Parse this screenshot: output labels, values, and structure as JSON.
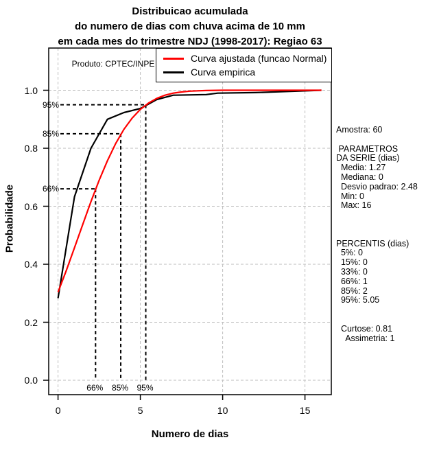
{
  "title": {
    "line1": "Distribuicao acumulada",
    "line2": "do numero de dias com chuva acima de 10 mm",
    "line3": "em cada mes do trimestre NDJ (1998-2017): Regiao 63"
  },
  "watermark": "Produto: CPTEC/INPE",
  "legend": {
    "items": [
      {
        "label": "Curva ajustada (funcao Normal)",
        "color": "#ff0000"
      },
      {
        "label": "Curva empirica",
        "color": "#000000"
      }
    ]
  },
  "axes": {
    "x_label": "Numero de dias",
    "y_label": "Probabilidade",
    "x_tick_labels": [
      "0",
      "5",
      "10",
      "15"
    ],
    "y_tick_labels": [
      "0.0",
      "0.2",
      "0.4",
      "0.6",
      "0.8",
      "1.0"
    ]
  },
  "stats_panel": {
    "lines": [
      "Amostra: 60",
      "",
      " PARAMETROS",
      "DA SERIE (dias)",
      "  Media: 1.27",
      "  Mediana: 0",
      "  Desvio padrao: 2.48",
      "  Min: 0",
      "  Max: 16",
      "",
      "",
      "",
      "PERCENTIS (dias)",
      "  5%: 0",
      "  15%: 0",
      "  33%: 0",
      "  66%: 1",
      "  85%: 2",
      "  95%: 5.05",
      "",
      "",
      "  Curtose: 0.81",
      "    Assimetria: 1"
    ]
  },
  "colors": {
    "fitted_curve": "#ff0000",
    "empirical_curve": "#000000",
    "gridline": "#bebebe",
    "guide": "#000000"
  },
  "chart_data": {
    "type": "line",
    "title": "Distribuicao acumulada do numero de dias com chuva acima de 10 mm em cada mes do trimestre NDJ (1998-2017): Regiao 63",
    "xlabel": "Numero de dias",
    "ylabel": "Probabilidade",
    "xlim": [
      0,
      16
    ],
    "ylim": [
      0.0,
      1.0
    ],
    "x_ticks": [
      0,
      5,
      10,
      15
    ],
    "y_ticks": [
      0.0,
      0.2,
      0.4,
      0.6,
      0.8,
      1.0
    ],
    "grid": "dashed-gray",
    "legend_position": "top",
    "series": [
      {
        "name": "Curva empirica",
        "color": "#000000",
        "points": [
          [
            0,
            0.283
          ],
          [
            1,
            0.633
          ],
          [
            2,
            0.8
          ],
          [
            3,
            0.9
          ],
          [
            4,
            0.923
          ],
          [
            5,
            0.937
          ],
          [
            6,
            0.968
          ],
          [
            7,
            0.983
          ],
          [
            9,
            0.985
          ],
          [
            9.7,
            0.99
          ],
          [
            12,
            0.992
          ],
          [
            13.5,
            0.995
          ],
          [
            16,
            1.0
          ]
        ]
      },
      {
        "name": "Curva ajustada (funcao Normal)",
        "color": "#ff0000",
        "points": [
          [
            0,
            0.304
          ],
          [
            0.5,
            0.378
          ],
          [
            1,
            0.457
          ],
          [
            1.5,
            0.537
          ],
          [
            2,
            0.616
          ],
          [
            2.5,
            0.69
          ],
          [
            3,
            0.757
          ],
          [
            3.5,
            0.816
          ],
          [
            4,
            0.865
          ],
          [
            4.5,
            0.904
          ],
          [
            5,
            0.934
          ],
          [
            5.5,
            0.956
          ],
          [
            6,
            0.972
          ],
          [
            6.5,
            0.983
          ],
          [
            7,
            0.99
          ],
          [
            7.5,
            0.994
          ],
          [
            8,
            0.997
          ],
          [
            8.5,
            0.998
          ],
          [
            9,
            0.999
          ],
          [
            10,
            1.0
          ],
          [
            16,
            1.0
          ]
        ]
      }
    ],
    "percentile_guides": [
      {
        "label": "66%",
        "x": 2.28,
        "p": 0.66
      },
      {
        "label": "85%",
        "x": 3.81,
        "p": 0.85
      },
      {
        "label": "95%",
        "x": 5.33,
        "p": 0.95
      }
    ]
  }
}
